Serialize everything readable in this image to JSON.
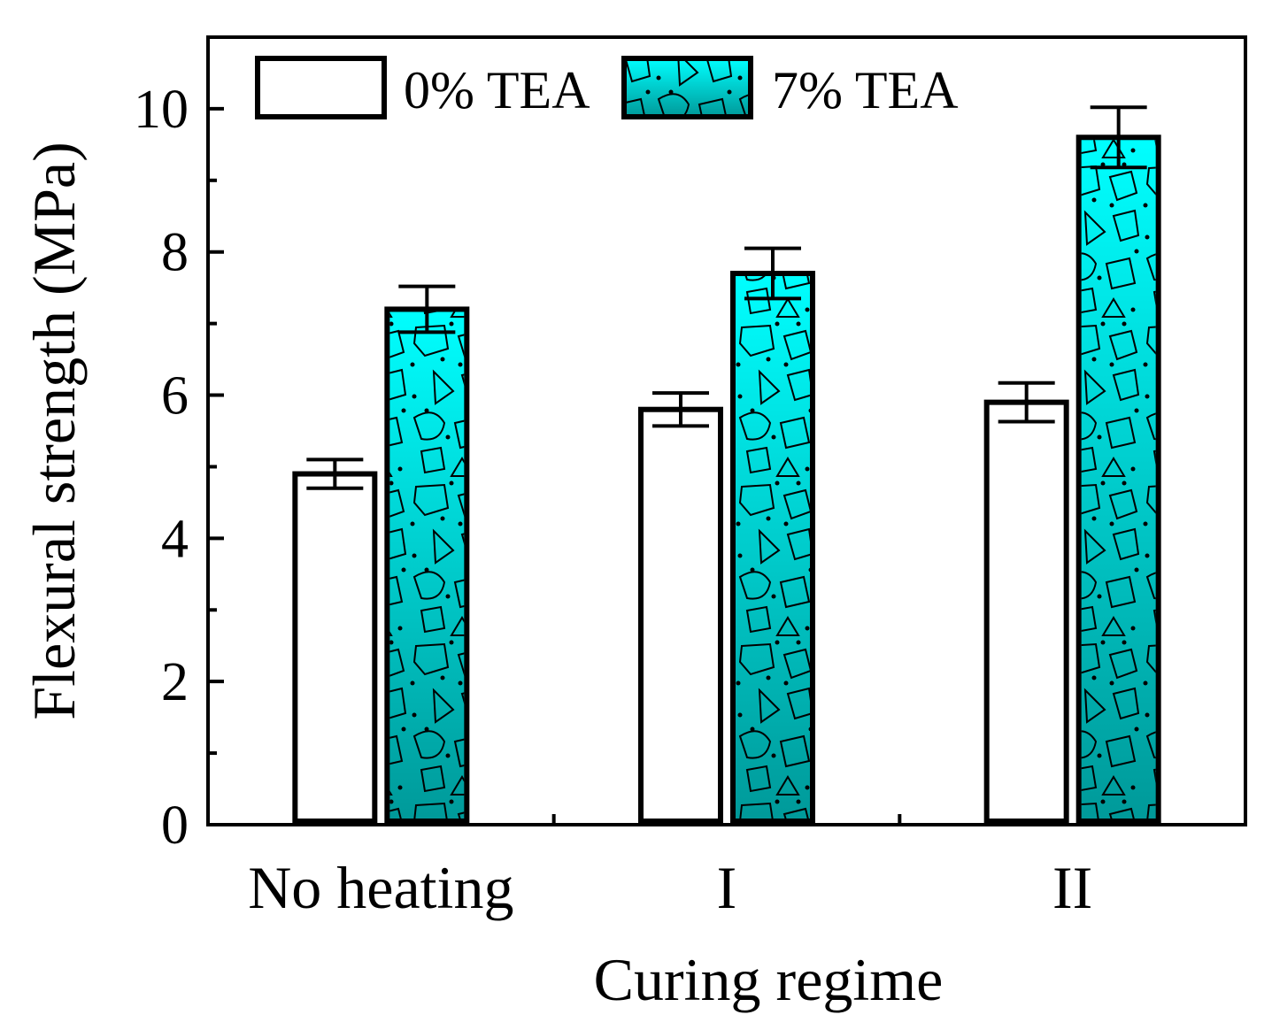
{
  "chart_data": {
    "type": "bar",
    "title": "",
    "xlabel": "Curing regime",
    "ylabel": "Flexural strength (MPa)",
    "ylim": [
      0,
      11
    ],
    "yticks": [
      0,
      2,
      4,
      6,
      8,
      10
    ],
    "categories": [
      "No heating",
      "I",
      "II"
    ],
    "legend_position": "top-left",
    "grid": false,
    "series": [
      {
        "name": "0% TEA",
        "values": [
          4.9,
          5.8,
          5.9
        ],
        "errors": [
          0.2,
          0.23,
          0.27
        ],
        "fill": "#ffffff",
        "pattern": "none"
      },
      {
        "name": "7% TEA",
        "values": [
          7.2,
          7.7,
          9.6
        ],
        "errors": [
          0.32,
          0.35,
          0.42
        ],
        "fill_top": "#00ffff",
        "fill_bottom": "#009999",
        "pattern": "concrete"
      }
    ]
  }
}
